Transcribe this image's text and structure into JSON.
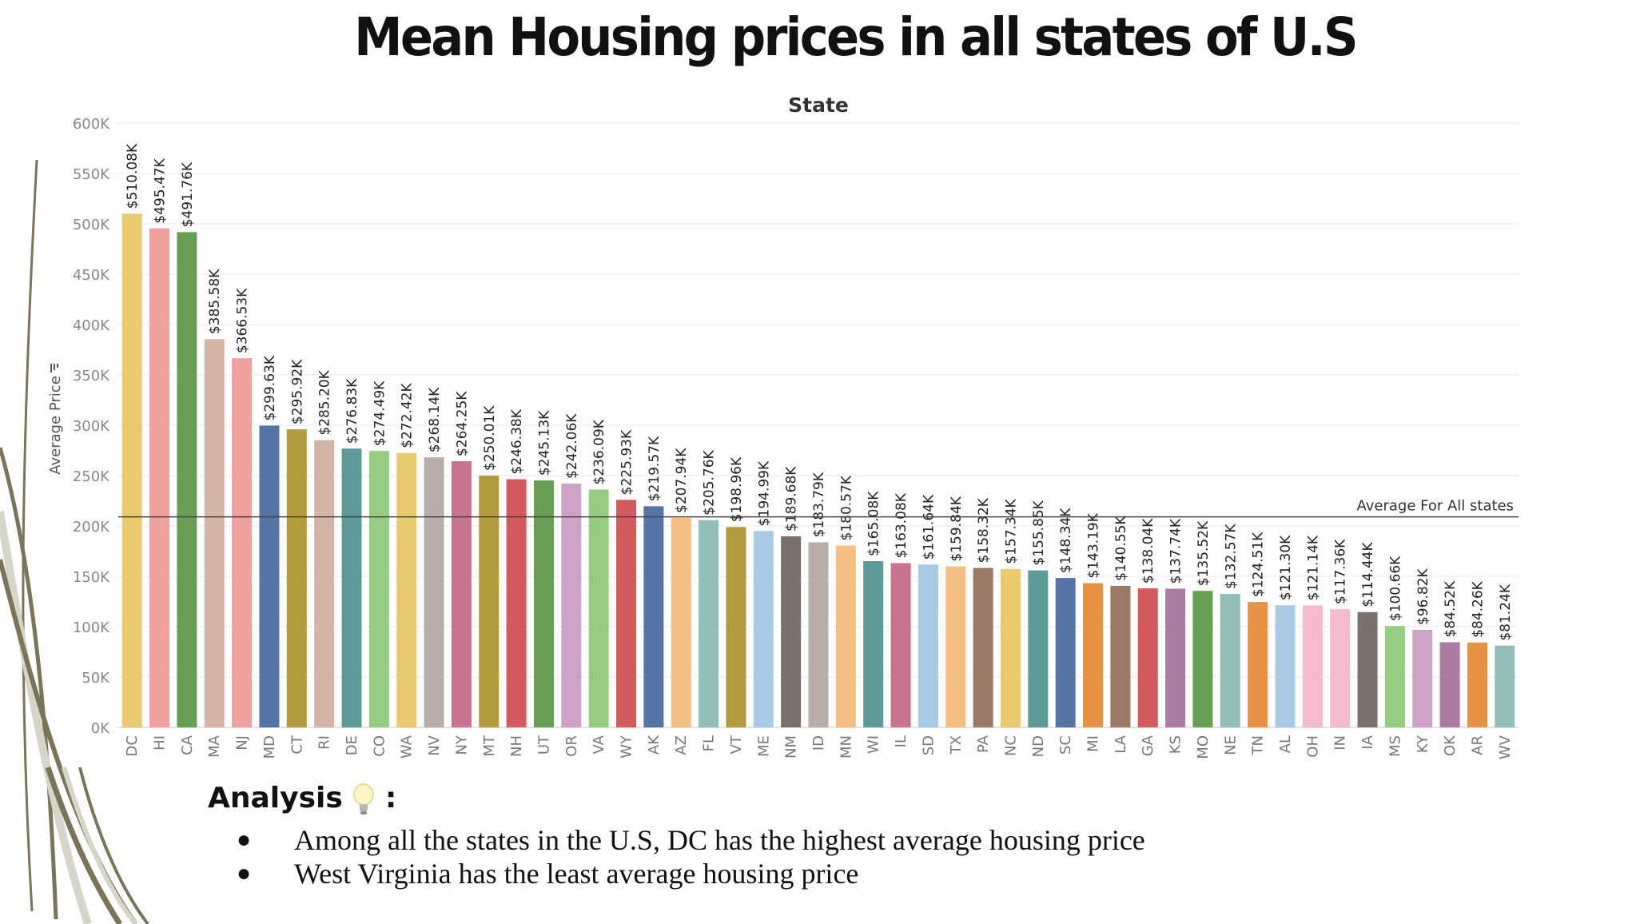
{
  "slide": {
    "title": "Mean Housing prices in all states of U.S",
    "analysis_heading": "Analysis",
    "analysis_colon": ":",
    "bullets": [
      "Among all the states in the U.S, DC has the highest average housing price",
      "West Virginia has the least average housing price"
    ],
    "bullet_symbol": "●"
  },
  "chart_data": {
    "type": "bar",
    "title": "State",
    "ylabel": "Average Price",
    "ylim": [
      0,
      600000
    ],
    "yticks": [
      0,
      50000,
      100000,
      150000,
      200000,
      250000,
      300000,
      350000,
      400000,
      450000,
      500000,
      550000,
      600000
    ],
    "ytick_labels": [
      "0K",
      "50K",
      "100K",
      "150K",
      "200K",
      "250K",
      "300K",
      "350K",
      "400K",
      "450K",
      "500K",
      "550K",
      "600K"
    ],
    "grid": true,
    "reference_line": {
      "label": "Average For All states",
      "value": 209000
    },
    "categories": [
      "DC",
      "HI",
      "CA",
      "MA",
      "NJ",
      "MD",
      "CT",
      "RI",
      "DE",
      "CO",
      "WA",
      "NV",
      "NY",
      "MT",
      "NH",
      "UT",
      "OR",
      "VA",
      "WY",
      "AK",
      "AZ",
      "FL",
      "VT",
      "ME",
      "NM",
      "ID",
      "MN",
      "WI",
      "IL",
      "SD",
      "TX",
      "PA",
      "NC",
      "ND",
      "SC",
      "MI",
      "LA",
      "GA",
      "KS",
      "MO",
      "NE",
      "TN",
      "AL",
      "OH",
      "IN",
      "IA",
      "MS",
      "KY",
      "OK",
      "AR",
      "WV"
    ],
    "values": [
      510080,
      495470,
      491760,
      385580,
      366530,
      299630,
      295920,
      285200,
      276830,
      274490,
      272420,
      268140,
      264250,
      250010,
      246380,
      245130,
      242060,
      236090,
      225930,
      219570,
      207940,
      205760,
      198960,
      194990,
      189680,
      183790,
      180570,
      165080,
      163080,
      161640,
      159840,
      158320,
      157340,
      155850,
      148340,
      143190,
      140550,
      138040,
      137740,
      135520,
      132570,
      124510,
      121300,
      121140,
      117360,
      114440,
      100660,
      96820,
      84520,
      84260,
      81240
    ],
    "value_labels": [
      "$510.08K",
      "$495.47K",
      "$491.76K",
      "$385.58K",
      "$366.53K",
      "$299.63K",
      "$295.92K",
      "$285.20K",
      "$276.83K",
      "$274.49K",
      "$272.42K",
      "$268.14K",
      "$264.25K",
      "$250.01K",
      "$246.38K",
      "$245.13K",
      "$242.06K",
      "$236.09K",
      "$225.93K",
      "$219.57K",
      "$207.94K",
      "$205.76K",
      "$198.96K",
      "$194.99K",
      "$189.68K",
      "$183.79K",
      "$180.57K",
      "$165.08K",
      "$163.08K",
      "$161.64K",
      "$159.84K",
      "$158.32K",
      "$157.34K",
      "$155.85K",
      "$148.34K",
      "$143.19K",
      "$140.55K",
      "$138.04K",
      "$137.74K",
      "$135.52K",
      "$132.57K",
      "$124.51K",
      "$121.30K",
      "$121.14K",
      "$117.36K",
      "$114.44K",
      "$100.66K",
      "$96.82K",
      "$84.52K",
      "$84.26K",
      "$81.24K"
    ],
    "colors": [
      "#E9CA6E",
      "#F0A19D",
      "#67A055",
      "#D5B3A6",
      "#F0A19D",
      "#5775A4",
      "#B49A3E",
      "#D5B3A6",
      "#5E9A96",
      "#94CC81",
      "#E9CA6E",
      "#B8ADA9",
      "#C8728F",
      "#B49A3E",
      "#D15B5D",
      "#67A055",
      "#CEA2C5",
      "#94CC81",
      "#D15B5D",
      "#5775A4",
      "#F4BF82",
      "#93BDB8",
      "#B49A3E",
      "#A7CAE5",
      "#7B706C",
      "#B8ADA9",
      "#F4BF82",
      "#5E9A96",
      "#C8728F",
      "#A7CAE5",
      "#F4BF82",
      "#9C7966",
      "#E9CA6E",
      "#5E9A96",
      "#5775A4",
      "#E59244",
      "#9C7966",
      "#D15B5D",
      "#AC7BA1",
      "#67A055",
      "#93BDB8",
      "#E59244",
      "#A7CAE5",
      "#F4BBCC",
      "#F4BBCC",
      "#7B706C",
      "#94CC81",
      "#CEA2C5",
      "#AC7BA1",
      "#E59244",
      "#93BDB8"
    ]
  }
}
